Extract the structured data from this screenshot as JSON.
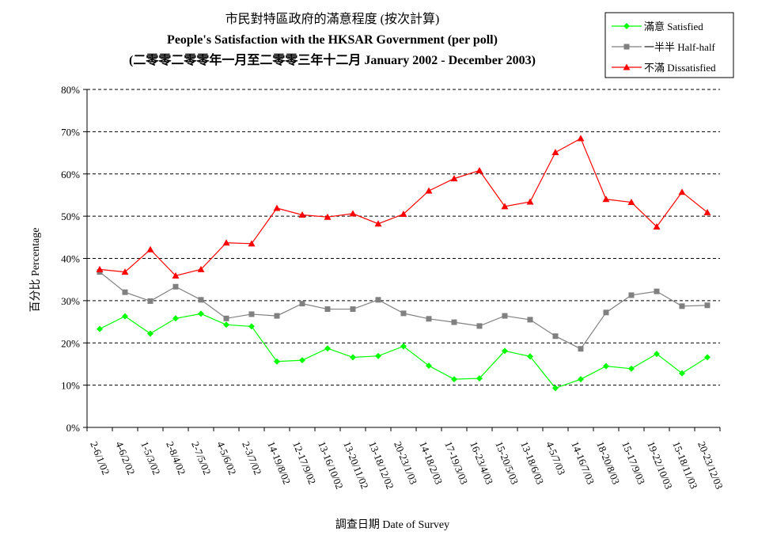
{
  "colors": {
    "satisfied": "#00ff00",
    "half_half": "#808080",
    "dissatisfied": "#ff0000"
  },
  "chart_data": {
    "type": "line",
    "title_lines": [
      "市民對特區政府的滿意程度 (按次計算)",
      "People's Satisfaction with the HKSAR Government  (per poll)",
      "(二零零二零零年一月至二零零三年十二月 January 2002 - December 2003)"
    ],
    "xlabel": "調查日期 Date of Survey",
    "ylabel": "百分比 Percentage",
    "ylim": [
      0,
      80
    ],
    "y_ticks": [
      "0%",
      "10%",
      "20%",
      "30%",
      "40%",
      "50%",
      "60%",
      "70%",
      "80%"
    ],
    "grid": "horizontal dashed",
    "legend_position": "top-right",
    "categories": [
      "2-6/1/02",
      "4-6/2/02",
      "1-5/3/02",
      "2-8/4/02",
      "2-7/5/02",
      "4-5/6/02",
      "2-3/7/02",
      "14-19/8/02",
      "12-17/9/02",
      "13-16/10/02",
      "13-20/11/02",
      "13-18/12/02",
      "20-23/1/03",
      "14-18/2/03",
      "17-19/3/03",
      "16-23/4/03",
      "15-20/5/03",
      "13-18/6/03",
      "4-5/7/03",
      "14-16/7/03",
      "18-20/8/03",
      "15-17/9/03",
      "19-22/10/03",
      "15-18/11/03",
      "20-23/12/03"
    ],
    "series": [
      {
        "name": "滿意 Satisfied",
        "color": "#00ff00",
        "marker": "diamond",
        "values": [
          23.3,
          26.3,
          22.2,
          25.8,
          26.9,
          24.3,
          23.9,
          15.6,
          15.9,
          18.7,
          16.6,
          16.9,
          19.2,
          14.6,
          11.4,
          11.6,
          18.1,
          16.8,
          9.3,
          11.4,
          14.5,
          13.9,
          17.4,
          12.8,
          16.6
        ]
      },
      {
        "name": "一半半 Half-half",
        "color": "#808080",
        "marker": "square",
        "values": [
          36.8,
          32.0,
          29.9,
          33.3,
          30.2,
          25.8,
          26.8,
          26.4,
          29.3,
          28.0,
          28.0,
          30.2,
          27.0,
          25.7,
          24.9,
          24.0,
          26.4,
          25.5,
          21.6,
          18.6,
          27.2,
          31.3,
          32.2,
          28.7,
          28.9
        ]
      },
      {
        "name": "不滿 Dissatisfied",
        "color": "#ff0000",
        "marker": "triangle",
        "values": [
          37.4,
          36.8,
          42.1,
          35.9,
          37.4,
          43.7,
          43.5,
          51.9,
          50.3,
          49.8,
          50.6,
          48.2,
          50.5,
          56.0,
          58.9,
          60.8,
          52.3,
          53.4,
          65.1,
          68.4,
          54.0,
          53.3,
          47.5,
          55.7,
          50.9
        ]
      }
    ]
  }
}
